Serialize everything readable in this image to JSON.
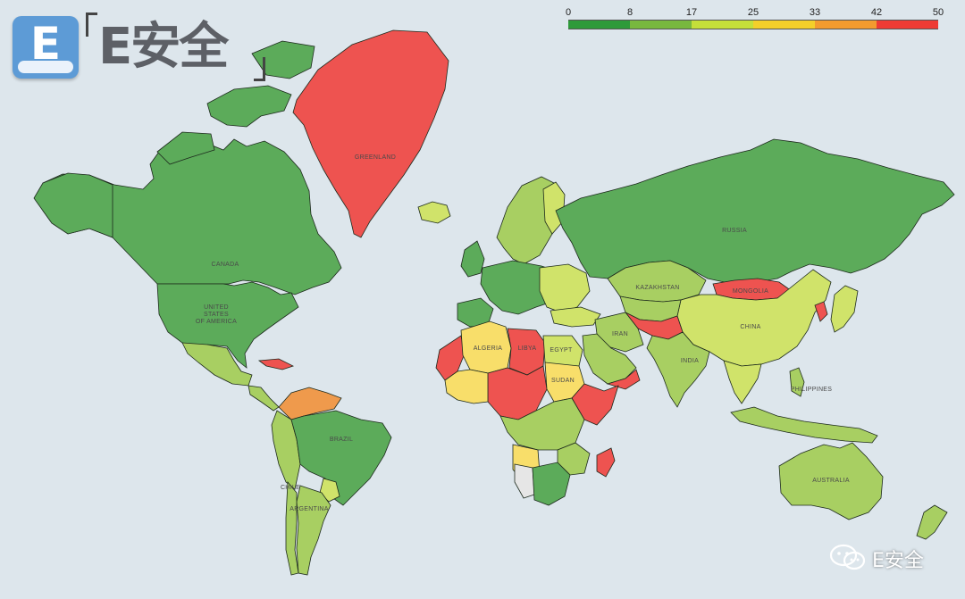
{
  "brand": {
    "badge_letter": "E",
    "name": "E安全",
    "watermark": "E安全",
    "badge_color": "#5d9bd6"
  },
  "legend": {
    "ticks": [
      "0",
      "8",
      "17",
      "25",
      "33",
      "42",
      "50"
    ],
    "colors": [
      "#2e9a3a",
      "#78b83e",
      "#c5df3a",
      "#f4cf2a",
      "#f39b2f",
      "#ee3b34"
    ]
  },
  "palette": {
    "ocean": "#dde6ec",
    "green": "#5cab5a",
    "light_green": "#a8cf62",
    "yellow_green": "#d0e36a",
    "yellow": "#f8de6a",
    "orange": "#ef9a4c",
    "red": "#ee5350",
    "grey": "#e6e6e6"
  },
  "country_labels": {
    "greenland": "GREENLAND",
    "canada": "CANADA",
    "usa_line1": "UNITED",
    "usa_line2": "STATES",
    "usa_line3": "OF AMERICA",
    "brazil": "BRAZIL",
    "russia": "RUSSIA",
    "kazakhstan": "KAZAKHSTAN",
    "mongolia": "MONGOLIA",
    "china": "CHINA",
    "india": "INDIA",
    "iran": "IRAN",
    "algeria": "ALGERIA",
    "libya": "LIBYA",
    "egypt": "EGYPT",
    "sudan": "SUDAN",
    "philippines": "PHILIPPINES",
    "australia": "AUSTRALIA",
    "argentina": "ARGENTINA",
    "chile": "CHILE"
  }
}
